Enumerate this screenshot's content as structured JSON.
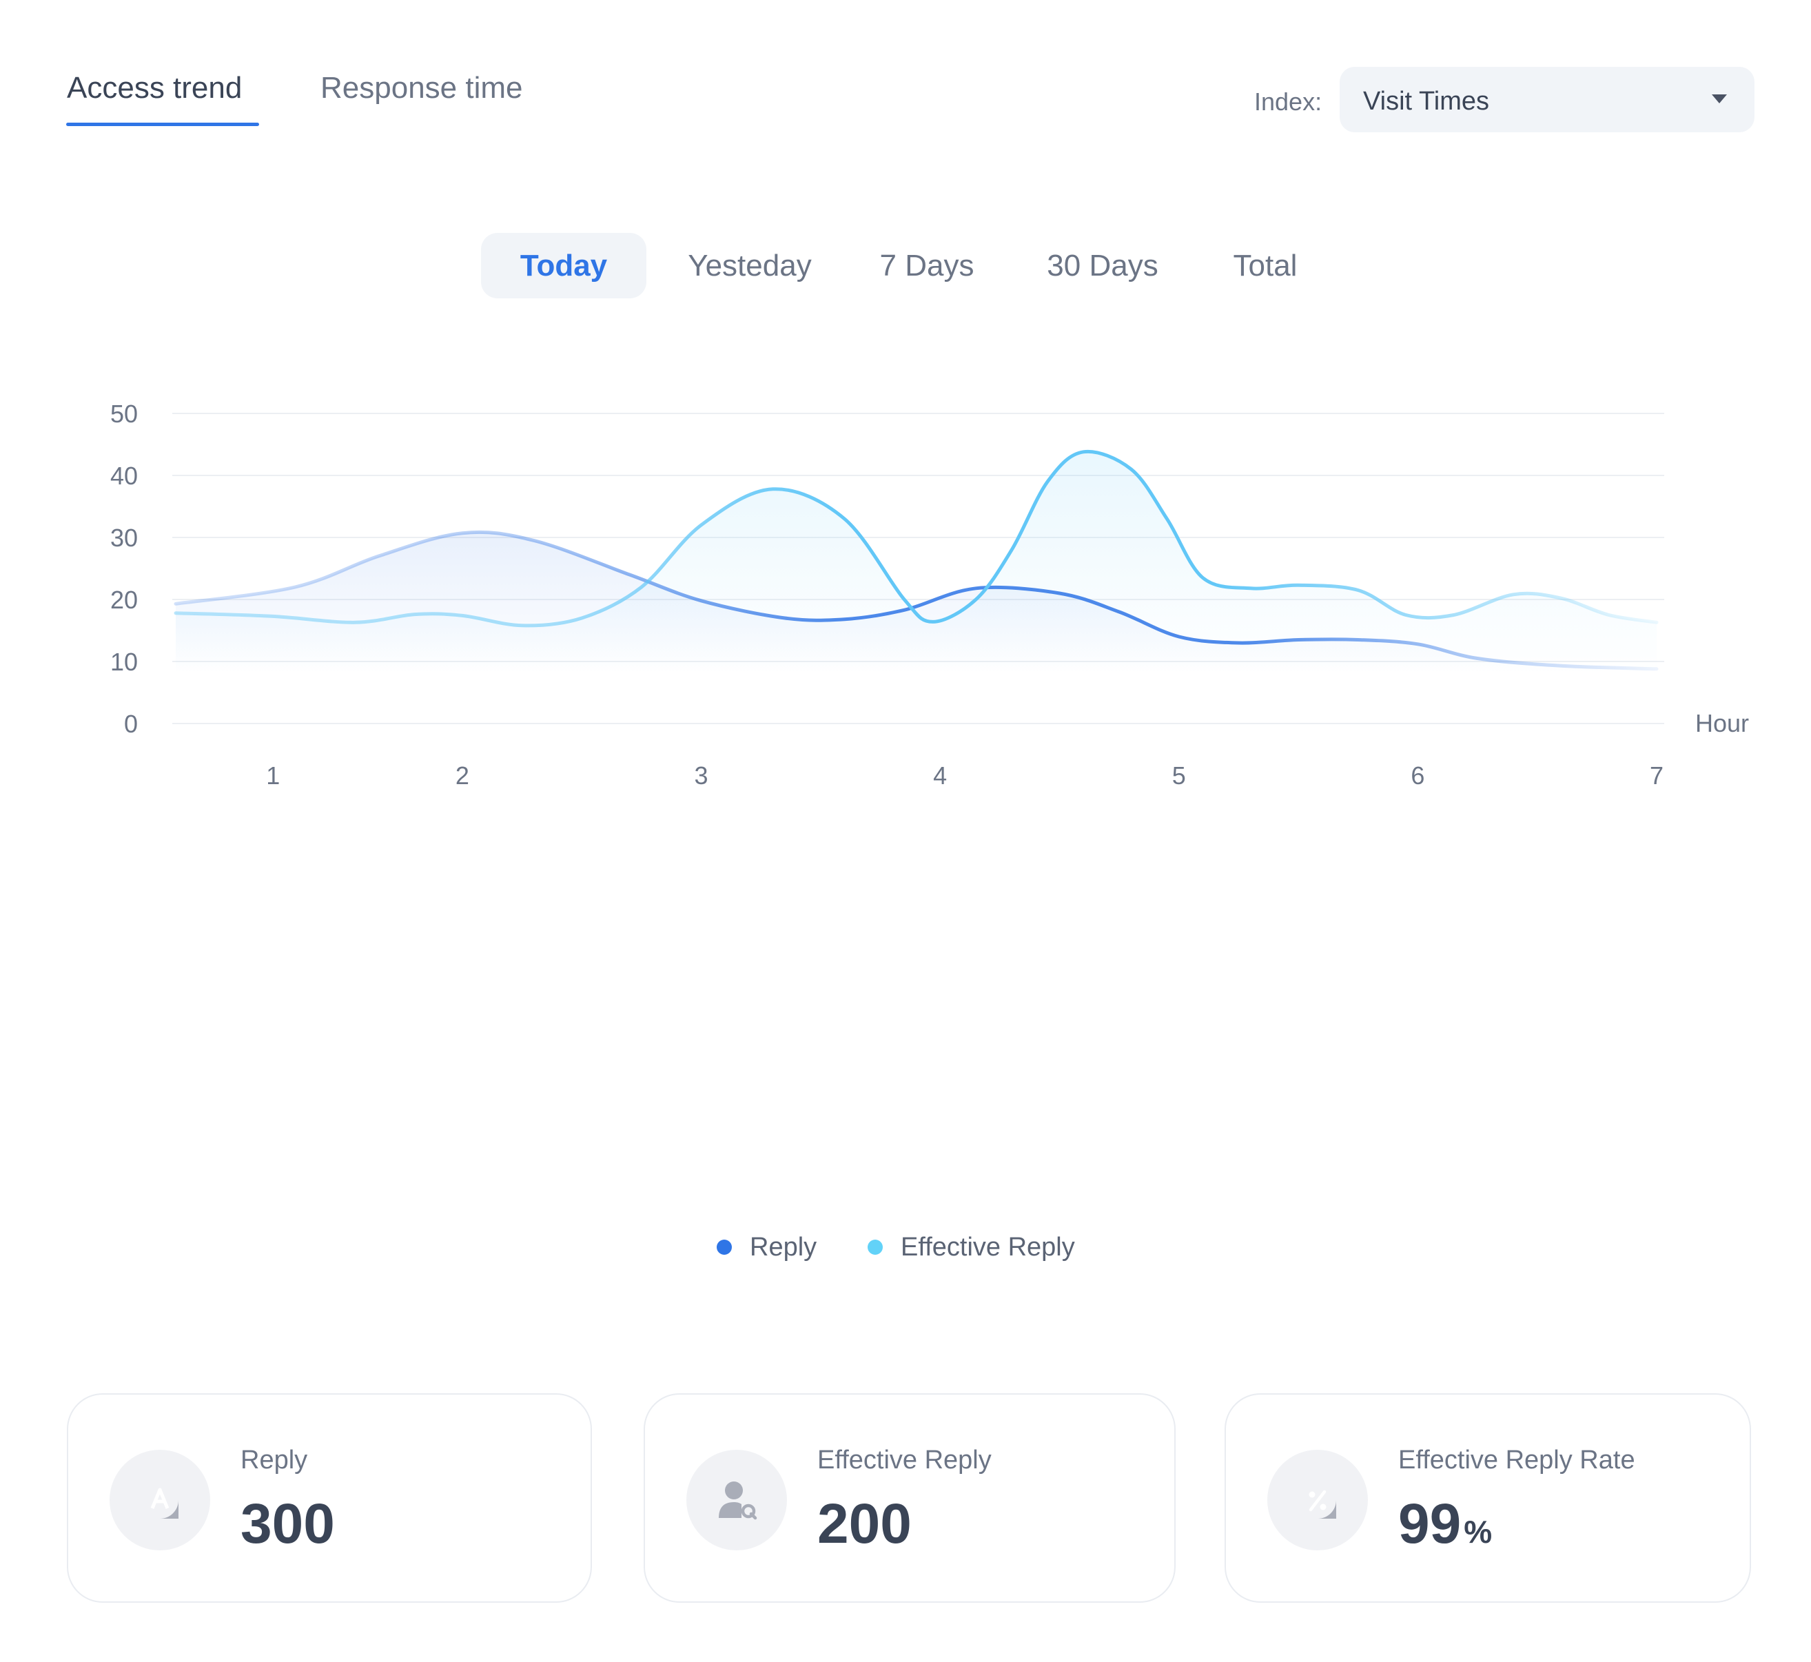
{
  "tabs": [
    {
      "label": "Access trend",
      "active": true
    },
    {
      "label": "Response time",
      "active": false
    }
  ],
  "index_select": {
    "label": "Index:",
    "value": "Visit Times"
  },
  "periods": [
    {
      "label": "Today",
      "active": true
    },
    {
      "label": "Yesteday",
      "active": false
    },
    {
      "label": "7 Days",
      "active": false
    },
    {
      "label": "30 Days",
      "active": false
    },
    {
      "label": "Total",
      "active": false
    }
  ],
  "chart_data": {
    "type": "area",
    "x": [
      1,
      2,
      3,
      4,
      5,
      6,
      7
    ],
    "xlim": [
      0.8,
      7
    ],
    "ylim": [
      0,
      50
    ],
    "yticks": [
      0,
      10,
      20,
      30,
      40,
      50
    ],
    "xlabel": "Hour",
    "ylabel": "",
    "grid": true,
    "legend": "bottom-center",
    "series": [
      {
        "name": "Reply",
        "color": "#2f75e6",
        "points": [
          [
            0.8,
            19.3
          ],
          [
            1.3,
            22
          ],
          [
            1.65,
            27
          ],
          [
            2,
            30.7
          ],
          [
            2.3,
            29.5
          ],
          [
            2.7,
            24
          ],
          [
            3,
            19.8
          ],
          [
            3.35,
            17
          ],
          [
            3.6,
            16.8
          ],
          [
            3.85,
            18.3
          ],
          [
            4.15,
            21.8
          ],
          [
            4.5,
            21
          ],
          [
            4.75,
            18
          ],
          [
            5,
            14
          ],
          [
            5.25,
            13
          ],
          [
            5.5,
            13.5
          ],
          [
            5.75,
            13.5
          ],
          [
            6,
            12.8
          ],
          [
            6.25,
            10.5
          ],
          [
            6.6,
            9.3
          ],
          [
            7,
            8.8
          ]
        ]
      },
      {
        "name": "Effective Reply",
        "color": "#62c7f7",
        "points": [
          [
            0.8,
            17.8
          ],
          [
            1.2,
            17.3
          ],
          [
            1.55,
            16.3
          ],
          [
            1.8,
            17.6
          ],
          [
            2,
            17.4
          ],
          [
            2.25,
            15.8
          ],
          [
            2.5,
            17
          ],
          [
            2.75,
            22
          ],
          [
            3,
            32
          ],
          [
            3.3,
            37.8
          ],
          [
            3.6,
            33
          ],
          [
            3.85,
            20
          ],
          [
            3.97,
            16.4
          ],
          [
            4.15,
            20
          ],
          [
            4.3,
            28
          ],
          [
            4.45,
            39
          ],
          [
            4.6,
            43.8
          ],
          [
            4.8,
            41
          ],
          [
            4.95,
            33
          ],
          [
            5.1,
            23.5
          ],
          [
            5.3,
            21.8
          ],
          [
            5.5,
            22.3
          ],
          [
            5.75,
            21.5
          ],
          [
            5.95,
            17.5
          ],
          [
            6.15,
            17.5
          ],
          [
            6.4,
            20.8
          ],
          [
            6.6,
            20.2
          ],
          [
            6.8,
            17.5
          ],
          [
            7,
            16.3
          ]
        ]
      }
    ]
  },
  "stats": [
    {
      "label": "Reply",
      "value": "300",
      "unit": "",
      "icon": "reply-icon"
    },
    {
      "label": "Effective Reply",
      "value": "200",
      "unit": "",
      "icon": "effective-reply-icon"
    },
    {
      "label": "Effective Reply Rate",
      "value": "99",
      "unit": "%",
      "icon": "percent-icon"
    }
  ]
}
